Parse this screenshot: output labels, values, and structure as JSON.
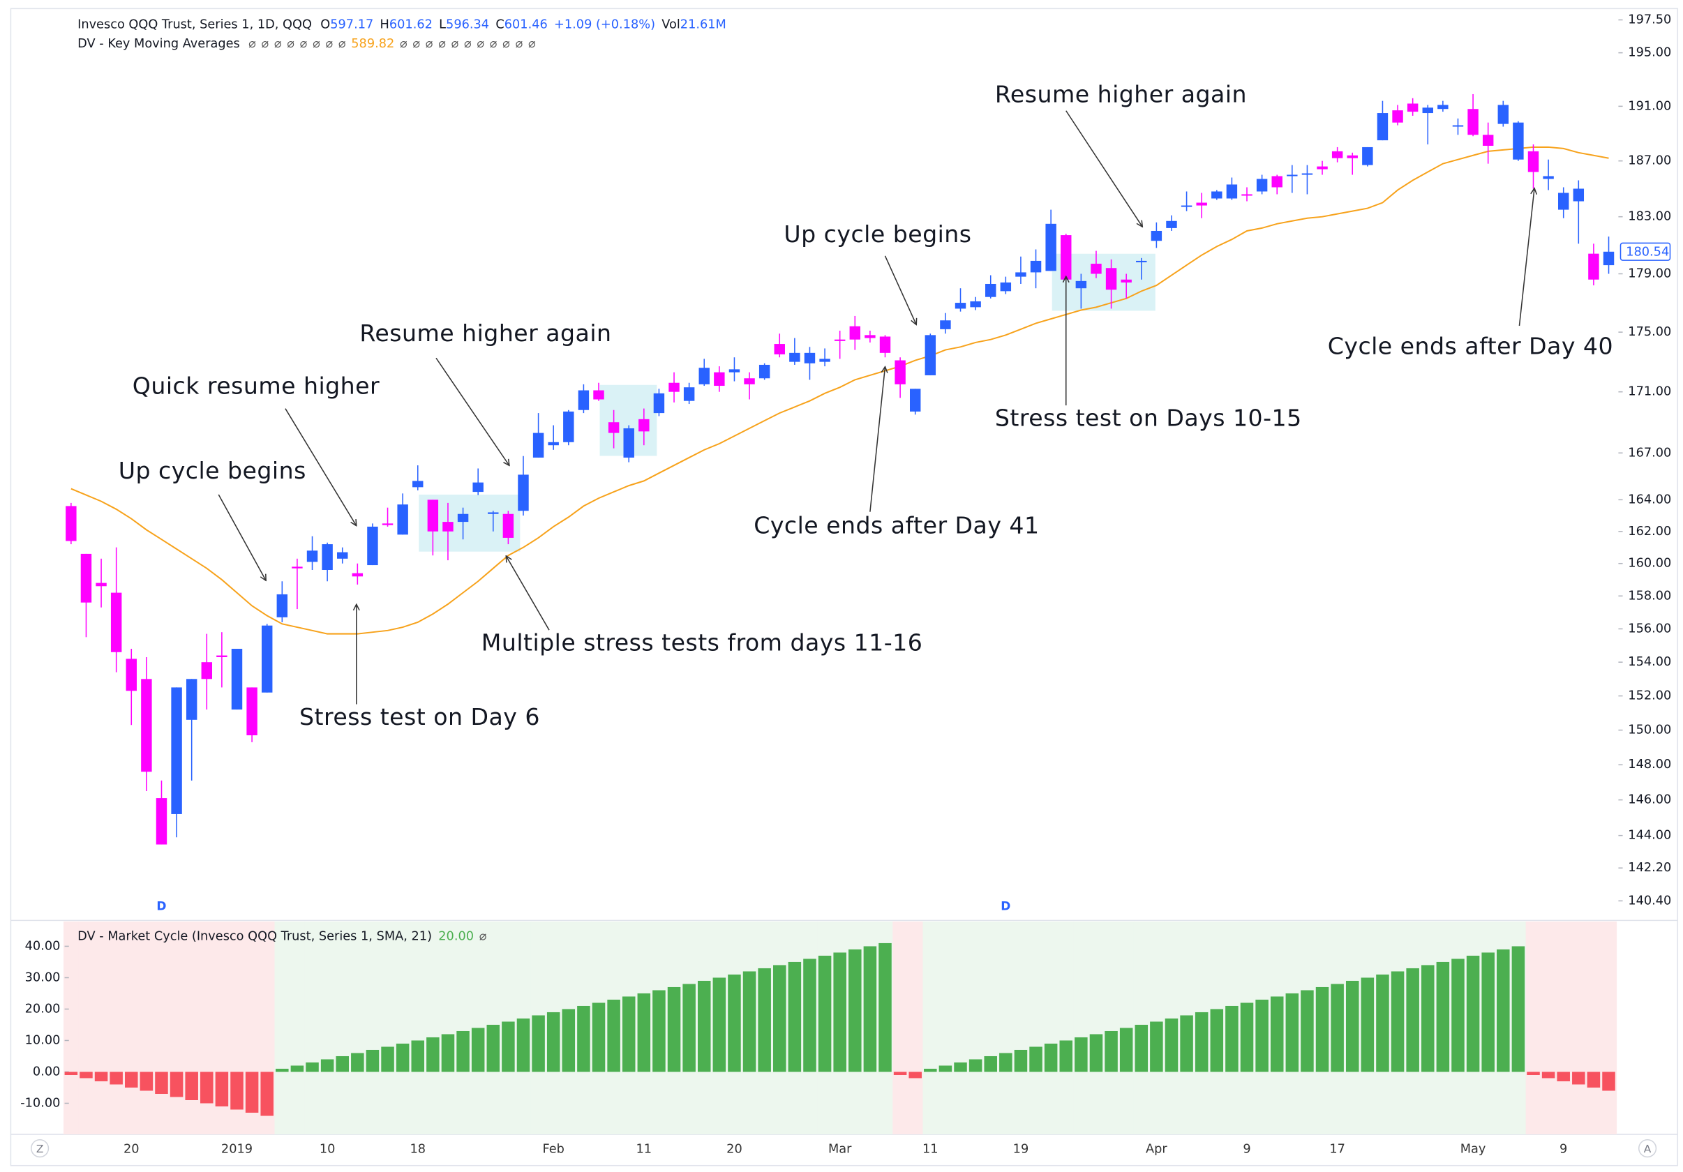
{
  "chart_data": [
    {
      "type": "candlestick",
      "title": "Invesco QQQ Trust, Series 1, 1D, QQQ",
      "legend": [
        {
          "label": "O",
          "value": "597.17"
        },
        {
          "label": "H",
          "value": "601.62"
        },
        {
          "label": "L",
          "value": "596.34"
        },
        {
          "label": "C",
          "value": "601.46"
        }
      ],
      "change": "+1.09 (+0.18%)",
      "volume": {
        "label": "Vol",
        "value": "21.61M"
      },
      "log_scale": true,
      "up_color": "#2962ff",
      "down_color": "#ff00ff",
      "categories": [
        null,
        null,
        null,
        null,
        "20",
        null,
        null,
        null,
        null,
        null,
        null,
        "2019",
        null,
        null,
        null,
        null,
        null,
        "10",
        null,
        null,
        null,
        null,
        null,
        "18",
        null,
        null,
        null,
        null,
        null,
        null,
        null,
        null,
        "Feb",
        null,
        null,
        null,
        null,
        null,
        "11",
        null,
        null,
        null,
        null,
        null,
        "20",
        null,
        null,
        null,
        null,
        null,
        null,
        "Mar",
        null,
        null,
        null,
        null,
        null,
        "11",
        null,
        null,
        null,
        null,
        null,
        "19",
        null,
        null,
        null,
        null,
        null,
        null,
        null,
        null,
        "Apr",
        null,
        null,
        null,
        null,
        null,
        "9",
        null,
        null,
        null,
        null,
        null,
        "17",
        null,
        null,
        null,
        null,
        null,
        null,
        null,
        null,
        "May",
        null,
        null,
        null,
        null,
        null,
        "9",
        null,
        null,
        null
      ],
      "open": [
        163.6,
        160.6,
        158.8,
        158.2,
        154.2,
        153.0,
        146.1,
        145.2,
        150.6,
        154.0,
        154.4,
        151.2,
        152.5,
        152.2,
        156.7,
        159.8,
        160.1,
        159.6,
        160.3,
        159.4,
        159.9,
        162.5,
        161.8,
        164.8,
        164.0,
        162.6,
        162.6,
        164.5,
        163.1,
        163.1,
        163.3,
        166.7,
        167.5,
        167.7,
        169.8,
        171.1,
        169.0,
        166.7,
        169.2,
        169.6,
        171.6,
        170.4,
        171.5,
        172.3,
        172.3,
        171.9,
        171.9,
        174.2,
        173.0,
        172.9,
        173.0,
        174.5,
        175.4,
        174.8,
        174.7,
        173.1,
        169.7,
        172.1,
        175.2,
        176.6,
        176.7,
        177.4,
        177.8,
        178.8,
        179.1,
        179.2,
        181.7,
        178.0,
        179.7,
        179.4,
        178.6,
        179.8,
        181.3,
        182.2,
        183.7,
        184.0,
        184.3,
        184.3,
        184.6,
        184.8,
        185.9,
        185.9,
        186.0,
        186.6,
        187.7,
        187.4,
        186.7,
        188.5,
        190.7,
        191.2,
        190.5,
        190.8,
        189.5,
        190.8,
        188.9,
        189.7,
        187.1,
        187.7,
        185.7,
        183.5,
        184.1,
        180.4,
        179.6
      ],
      "high": [
        163.8,
        160.6,
        160.3,
        161.0,
        154.8,
        154.3,
        147.1,
        152.5,
        153.0,
        155.7,
        155.8,
        154.8,
        152.5,
        156.3,
        158.9,
        160.3,
        161.7,
        161.3,
        161.0,
        160.0,
        162.5,
        163.5,
        164.4,
        166.2,
        164.0,
        163.8,
        163.5,
        166.0,
        163.3,
        163.3,
        166.8,
        169.6,
        168.8,
        169.8,
        171.5,
        171.6,
        169.8,
        168.8,
        169.9,
        171.2,
        172.3,
        171.6,
        173.2,
        172.7,
        173.3,
        172.3,
        172.9,
        174.9,
        174.6,
        174.0,
        173.9,
        175.1,
        176.1,
        175.1,
        174.8,
        173.3,
        171.2,
        174.9,
        176.3,
        178.0,
        177.4,
        178.9,
        178.8,
        180.2,
        180.7,
        183.5,
        181.8,
        179.0,
        180.6,
        180.0,
        179.0,
        180.1,
        182.6,
        183.1,
        184.8,
        184.7,
        184.9,
        185.8,
        185.1,
        186.0,
        186.0,
        186.7,
        186.7,
        187.0,
        188.0,
        187.6,
        188.0,
        191.4,
        191.1,
        191.6,
        191.1,
        191.4,
        190.1,
        191.9,
        189.8,
        191.4,
        189.9,
        188.2,
        187.1,
        185.1,
        185.6,
        181.1,
        181.6
      ],
      "low": [
        161.2,
        155.5,
        157.3,
        153.4,
        150.3,
        146.5,
        143.5,
        143.9,
        147.1,
        151.2,
        152.5,
        151.2,
        149.3,
        152.2,
        156.4,
        157.2,
        159.6,
        158.9,
        160.0,
        158.7,
        159.9,
        162.3,
        161.8,
        164.6,
        160.5,
        160.2,
        161.5,
        164.3,
        162.0,
        161.2,
        163.0,
        166.7,
        167.2,
        167.5,
        169.6,
        170.4,
        167.3,
        166.4,
        167.5,
        169.4,
        170.3,
        170.2,
        171.4,
        171.0,
        171.7,
        170.5,
        171.8,
        173.3,
        172.8,
        171.8,
        172.7,
        173.2,
        173.8,
        174.3,
        173.3,
        170.6,
        169.5,
        172.1,
        174.9,
        176.4,
        176.5,
        177.3,
        177.6,
        178.3,
        178.0,
        179.2,
        178.5,
        176.6,
        178.7,
        176.6,
        177.3,
        178.6,
        180.8,
        182.0,
        183.4,
        182.9,
        184.2,
        184.2,
        184.1,
        184.6,
        184.6,
        184.7,
        184.6,
        186.0,
        186.9,
        186.0,
        186.6,
        188.5,
        189.6,
        190.3,
        188.2,
        190.6,
        188.9,
        188.8,
        186.8,
        189.5,
        187.0,
        185.0,
        184.9,
        182.9,
        181.1,
        178.2,
        179.0
      ],
      "close": [
        161.4,
        157.6,
        158.6,
        154.6,
        152.3,
        147.6,
        143.5,
        152.5,
        153.0,
        153.0,
        154.3,
        154.8,
        149.7,
        156.2,
        158.1,
        159.7,
        160.8,
        161.2,
        160.7,
        159.2,
        162.3,
        162.4,
        163.7,
        165.2,
        162.0,
        162.0,
        163.1,
        165.1,
        163.2,
        161.6,
        165.6,
        168.3,
        167.7,
        169.7,
        171.1,
        170.5,
        168.3,
        168.6,
        168.4,
        170.9,
        171.0,
        171.3,
        172.6,
        171.4,
        172.5,
        171.5,
        172.8,
        173.5,
        173.6,
        173.6,
        173.2,
        174.4,
        174.5,
        174.6,
        173.6,
        171.5,
        171.2,
        174.8,
        175.8,
        177.0,
        177.1,
        178.3,
        178.4,
        179.1,
        179.9,
        182.5,
        178.6,
        178.5,
        179.0,
        177.9,
        178.4,
        179.9,
        182.0,
        182.7,
        183.8,
        183.8,
        184.8,
        185.3,
        184.5,
        185.7,
        185.1,
        186.0,
        186.1,
        186.4,
        187.2,
        187.2,
        188.0,
        190.5,
        189.8,
        190.6,
        190.9,
        191.1,
        189.6,
        188.9,
        188.1,
        191.1,
        189.8,
        186.2,
        185.9,
        184.7,
        185.0,
        178.6,
        180.54
      ],
      "series": [
        {
          "name": "DV - Key Moving Averages",
          "color": "#f7a21b",
          "legend_values": [
            "⌀",
            "⌀",
            "⌀",
            "⌀",
            "⌀",
            "⌀",
            "⌀",
            "⌀",
            "589.82",
            "⌀",
            "⌀",
            "⌀",
            "⌀",
            "⌀",
            "⌀",
            "⌀",
            "⌀",
            "⌀",
            "⌀",
            "⌀"
          ],
          "values": [
            164.7,
            164.3,
            163.9,
            163.4,
            162.8,
            162.1,
            161.5,
            160.9,
            160.3,
            159.7,
            159.0,
            158.2,
            157.4,
            156.8,
            156.3,
            156.1,
            155.9,
            155.7,
            155.7,
            155.7,
            155.8,
            155.9,
            156.1,
            156.4,
            156.9,
            157.5,
            158.2,
            158.9,
            159.7,
            160.5,
            161.0,
            161.6,
            162.3,
            162.9,
            163.6,
            164.1,
            164.5,
            164.9,
            165.2,
            165.7,
            166.2,
            166.7,
            167.2,
            167.6,
            168.1,
            168.6,
            169.1,
            169.6,
            170.0,
            170.4,
            170.9,
            171.3,
            171.8,
            172.1,
            172.4,
            172.7,
            173.1,
            173.4,
            173.8,
            174.0,
            174.3,
            174.5,
            174.8,
            175.2,
            175.6,
            175.9,
            176.2,
            176.5,
            176.7,
            177.0,
            177.3,
            177.8,
            178.2,
            178.9,
            179.6,
            180.3,
            180.9,
            181.4,
            182.0,
            182.2,
            182.5,
            182.7,
            182.9,
            183.0,
            183.2,
            183.4,
            183.6,
            184.0,
            184.9,
            185.6,
            186.2,
            186.8,
            187.1,
            187.4,
            187.7,
            187.8,
            187.9,
            188.0,
            188.0,
            187.9,
            187.6,
            187.4,
            187.2
          ]
        }
      ],
      "events": [
        {
          "index": 6,
          "label": "D"
        },
        {
          "index": 62,
          "label": "D"
        }
      ],
      "ylim": [
        139.4,
        198.2
      ],
      "yticks": [
        {
          "value": 197.5,
          "label": "197.50"
        },
        {
          "value": 195,
          "label": "195.00"
        },
        {
          "value": 191,
          "label": "191.00"
        },
        {
          "value": 187,
          "label": "187.00"
        },
        {
          "value": 183,
          "label": "183.00"
        },
        {
          "value": 179,
          "label": "179.00"
        },
        {
          "value": 175,
          "label": "175.00"
        },
        {
          "value": 171,
          "label": "171.00"
        },
        {
          "value": 167,
          "label": "167.00"
        },
        {
          "value": 164,
          "label": "164.00"
        },
        {
          "value": 162,
          "label": "162.00"
        },
        {
          "value": 160,
          "label": "160.00"
        },
        {
          "value": 158,
          "label": "158.00"
        },
        {
          "value": 156,
          "label": "156.00"
        },
        {
          "value": 154,
          "label": "154.00"
        },
        {
          "value": 152,
          "label": "152.00"
        },
        {
          "value": 150,
          "label": "150.00"
        },
        {
          "value": 148,
          "label": "148.00"
        },
        {
          "value": 146,
          "label": "146.00"
        },
        {
          "value": 144,
          "label": "144.00"
        },
        {
          "value": 142.2,
          "label": "142.20"
        },
        {
          "value": 140.4,
          "label": "140.40"
        }
      ],
      "grid": false
    },
    {
      "type": "bar",
      "title": "DV - Market Cycle (Invesco QQQ Trust, Series 1, SMA, 21)",
      "legend_values": [
        "20.00",
        "⌀"
      ],
      "colors": {
        "positive": "#4caf50",
        "negative": "#f7525f"
      },
      "background_colors": {
        "positive": "#edf7ee",
        "negative": "#fde9ea"
      },
      "values": [
        -1,
        -2,
        -3,
        -4,
        -5,
        -6,
        -7,
        -8,
        -9,
        -10,
        -11,
        -12,
        -13,
        -14,
        1,
        2,
        3,
        4,
        5,
        6,
        7,
        8,
        9,
        10,
        11,
        12,
        13,
        14,
        15,
        16,
        17,
        18,
        19,
        20,
        21,
        22,
        23,
        24,
        25,
        26,
        27,
        28,
        29,
        30,
        31,
        32,
        33,
        34,
        35,
        36,
        37,
        38,
        39,
        40,
        41,
        -1,
        -2,
        1,
        2,
        3,
        4,
        5,
        6,
        7,
        8,
        9,
        10,
        11,
        12,
        13,
        14,
        15,
        16,
        17,
        18,
        19,
        20,
        21,
        22,
        23,
        24,
        25,
        26,
        27,
        28,
        29,
        30,
        31,
        32,
        33,
        34,
        35,
        36,
        37,
        38,
        39,
        40,
        -1,
        -2,
        -3,
        -4,
        -5,
        -6
      ],
      "ylim": [
        -19.9,
        47.9
      ],
      "yticks": [
        {
          "value": 40,
          "label": "40.00"
        },
        {
          "value": 30,
          "label": "30.00"
        },
        {
          "value": 20,
          "label": "20.00"
        },
        {
          "value": 10,
          "label": "10.00"
        },
        {
          "value": 0,
          "label": "0.00"
        },
        {
          "value": -10,
          "label": "-10.00"
        }
      ],
      "grid": false
    }
  ],
  "annotations": [
    "Up cycle begins",
    "Quick resume higher",
    "Resume higher again",
    "Stress test on Day 6",
    "Multiple stress tests from days 11-16",
    "Up cycle begins",
    "Cycle ends after Day 41",
    "Resume higher again",
    "Stress test on Days 10-15",
    "Cycle ends after Day 40"
  ],
  "controls": {
    "left": "Z",
    "right": "A"
  }
}
